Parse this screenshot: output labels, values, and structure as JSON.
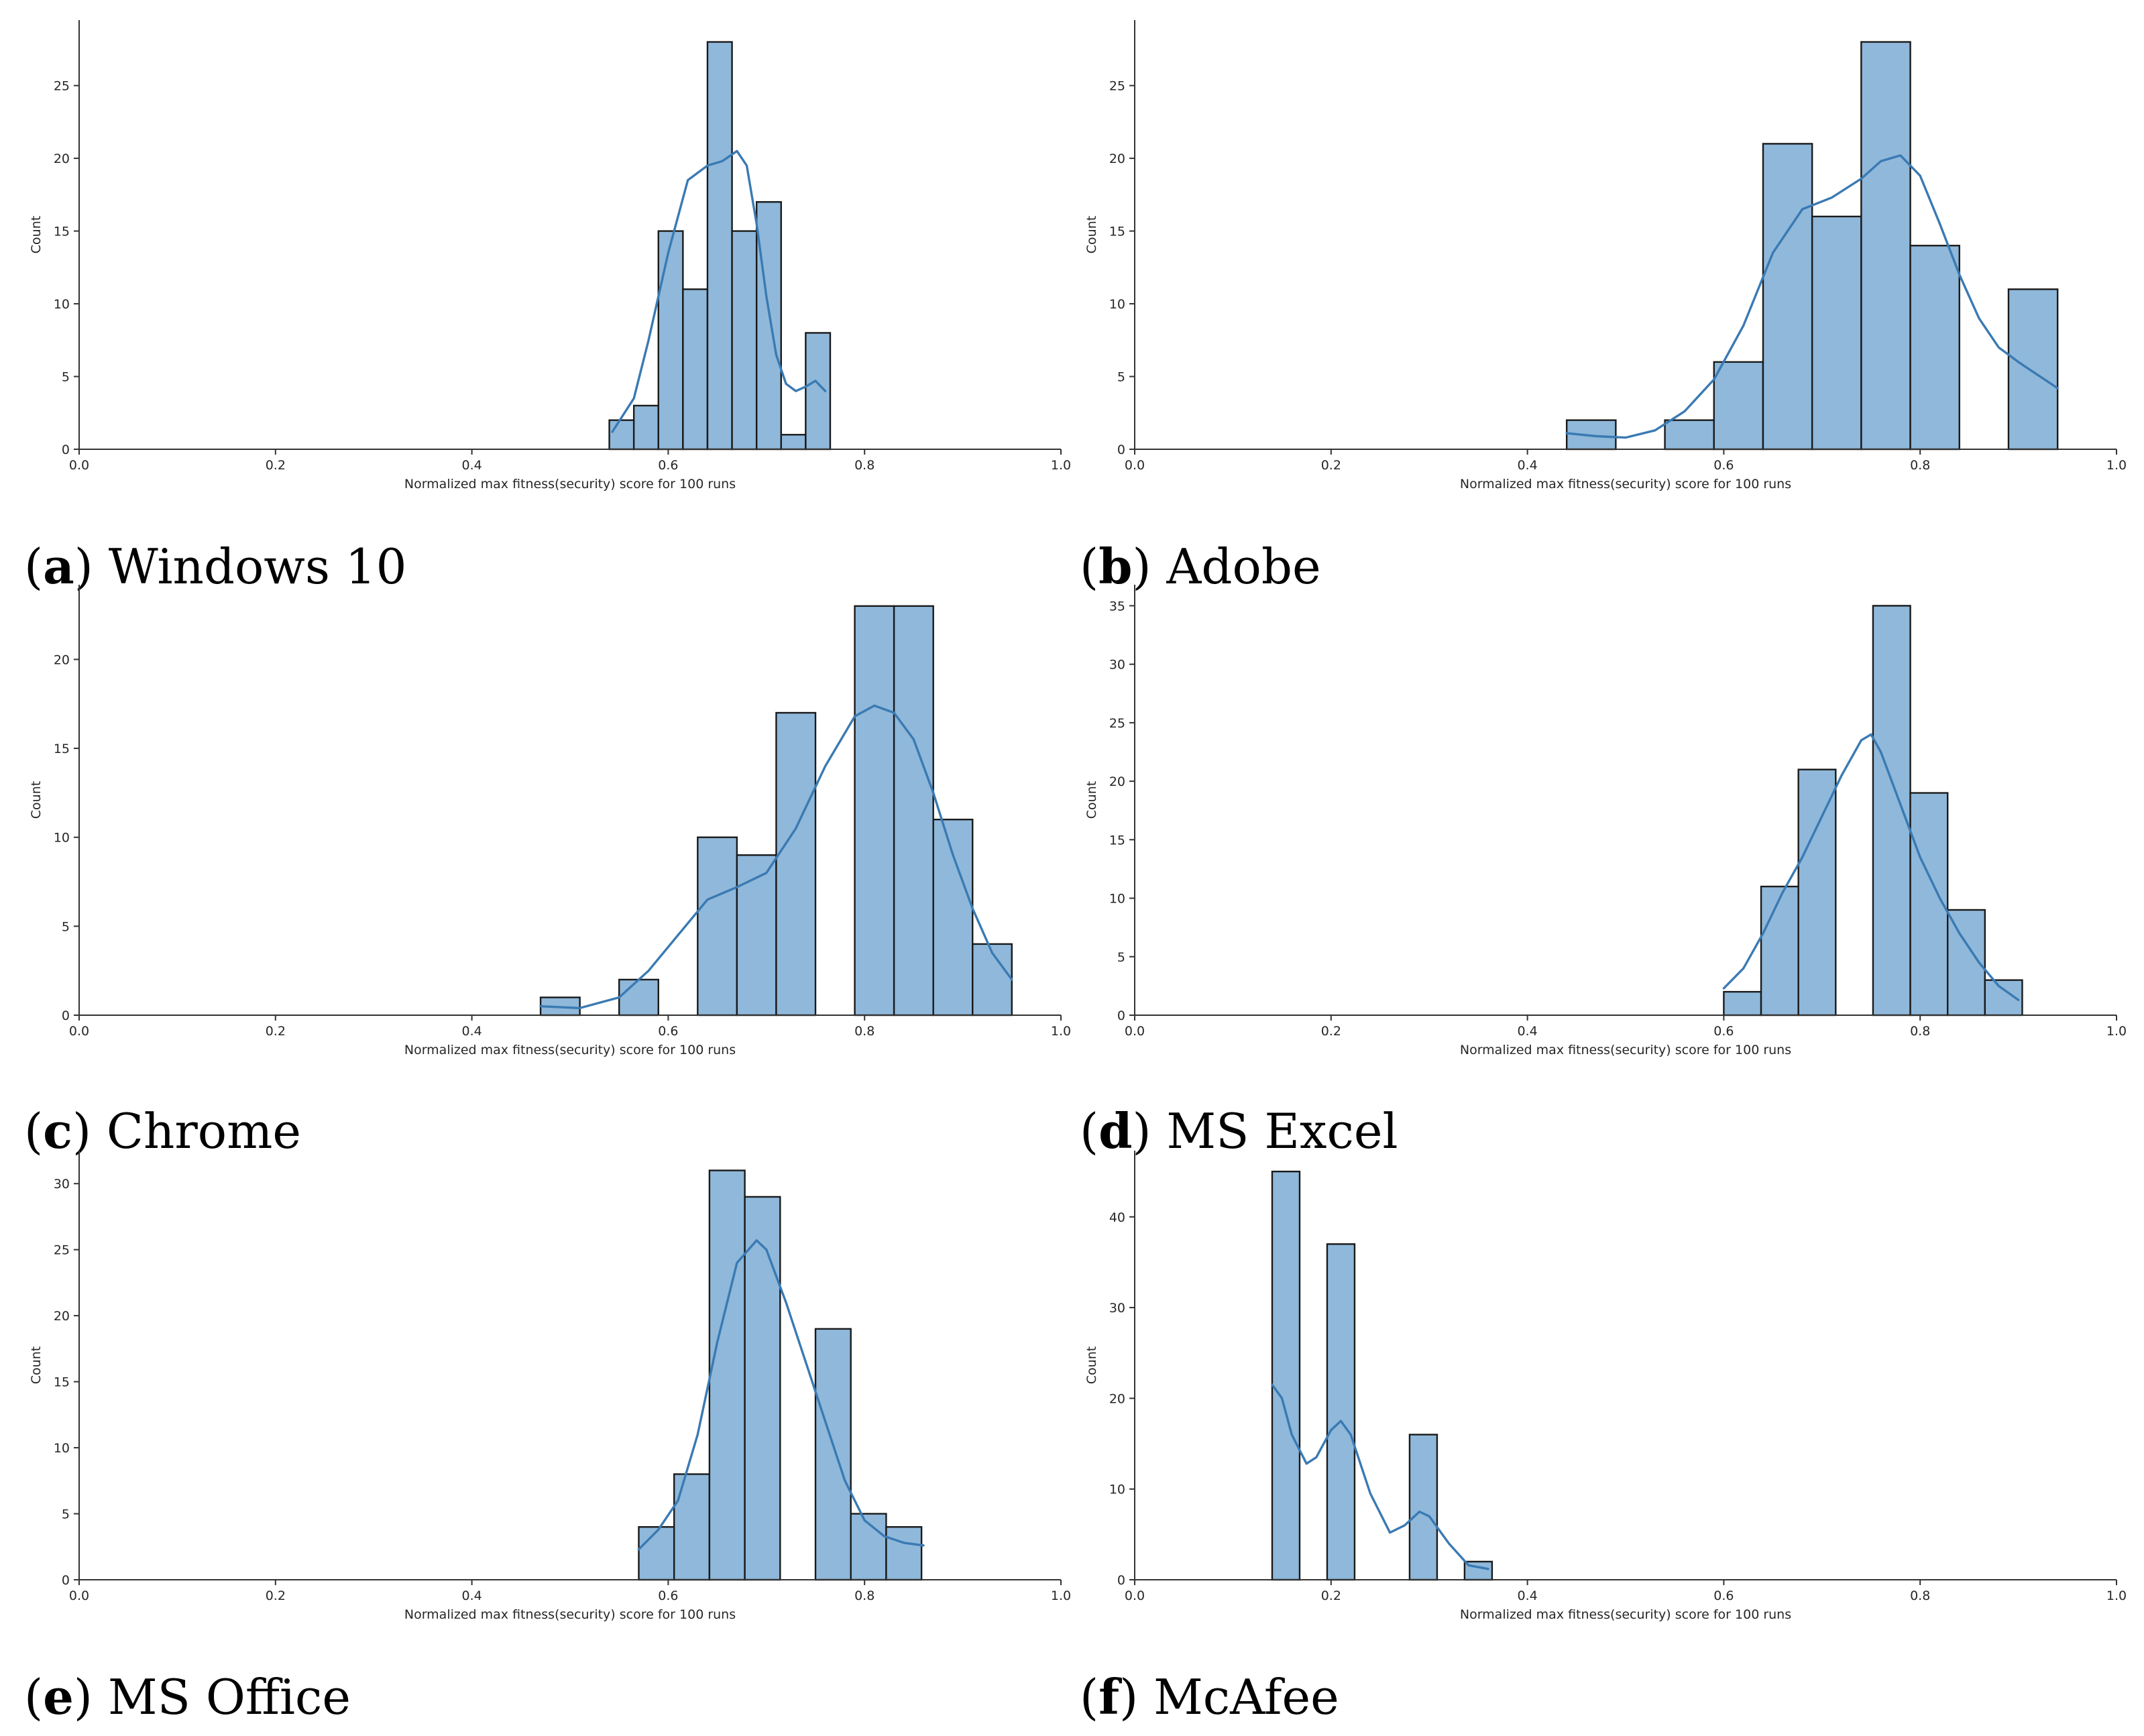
{
  "figure": {
    "style": {
      "bar_color": "#8fb8da",
      "kde_color": "#3a7ab3"
    }
  },
  "chart_data": [
    {
      "panel": "a",
      "caption_label": "a",
      "caption_text": "Windows 10",
      "type": "bar",
      "xlabel": "Normalized max fitness(security) score for 100 runs",
      "ylabel": "Count",
      "xlim": [
        0.0,
        1.0
      ],
      "ylim": [
        0,
        29.5
      ],
      "xticks": [
        "0.0",
        "0.2",
        "0.4",
        "0.6",
        "0.8",
        "1.0"
      ],
      "yticks": [
        "0",
        "5",
        "10",
        "15",
        "20",
        "25"
      ],
      "bins": [
        {
          "x0": 0.54,
          "x1": 0.565,
          "count": 2
        },
        {
          "x0": 0.565,
          "x1": 0.59,
          "count": 3
        },
        {
          "x0": 0.59,
          "x1": 0.615,
          "count": 15
        },
        {
          "x0": 0.615,
          "x1": 0.64,
          "count": 11
        },
        {
          "x0": 0.64,
          "x1": 0.665,
          "count": 28
        },
        {
          "x0": 0.665,
          "x1": 0.69,
          "count": 15
        },
        {
          "x0": 0.69,
          "x1": 0.715,
          "count": 17
        },
        {
          "x0": 0.715,
          "x1": 0.74,
          "count": 1
        },
        {
          "x0": 0.74,
          "x1": 0.765,
          "count": 8
        }
      ],
      "kde": [
        [
          0.543,
          1.2
        ],
        [
          0.565,
          3.5
        ],
        [
          0.58,
          7.5
        ],
        [
          0.6,
          13.5
        ],
        [
          0.62,
          18.5
        ],
        [
          0.64,
          19.5
        ],
        [
          0.655,
          19.8
        ],
        [
          0.67,
          20.5
        ],
        [
          0.68,
          19.5
        ],
        [
          0.69,
          15.5
        ],
        [
          0.7,
          10.5
        ],
        [
          0.71,
          6.5
        ],
        [
          0.72,
          4.5
        ],
        [
          0.73,
          4.0
        ],
        [
          0.74,
          4.3
        ],
        [
          0.75,
          4.7
        ],
        [
          0.76,
          4.0
        ]
      ]
    },
    {
      "panel": "b",
      "caption_label": "b",
      "caption_text": "Adobe",
      "type": "bar",
      "xlabel": "Normalized max fitness(security) score for 100 runs",
      "ylabel": "Count",
      "xlim": [
        0.0,
        1.0
      ],
      "ylim": [
        0,
        29.5
      ],
      "xticks": [
        "0.0",
        "0.2",
        "0.4",
        "0.6",
        "0.8",
        "1.0"
      ],
      "yticks": [
        "0",
        "5",
        "10",
        "15",
        "20",
        "25"
      ],
      "bins": [
        {
          "x0": 0.44,
          "x1": 0.49,
          "count": 2
        },
        {
          "x0": 0.49,
          "x1": 0.54,
          "count": 0
        },
        {
          "x0": 0.54,
          "x1": 0.59,
          "count": 2
        },
        {
          "x0": 0.59,
          "x1": 0.64,
          "count": 6
        },
        {
          "x0": 0.64,
          "x1": 0.69,
          "count": 21
        },
        {
          "x0": 0.69,
          "x1": 0.74,
          "count": 16
        },
        {
          "x0": 0.74,
          "x1": 0.79,
          "count": 28
        },
        {
          "x0": 0.79,
          "x1": 0.84,
          "count": 14
        },
        {
          "x0": 0.84,
          "x1": 0.89,
          "count": 0
        },
        {
          "x0": 0.89,
          "x1": 0.94,
          "count": 11
        }
      ],
      "kde": [
        [
          0.44,
          1.1
        ],
        [
          0.47,
          0.9
        ],
        [
          0.5,
          0.8
        ],
        [
          0.53,
          1.3
        ],
        [
          0.56,
          2.6
        ],
        [
          0.59,
          4.8
        ],
        [
          0.62,
          8.5
        ],
        [
          0.65,
          13.5
        ],
        [
          0.68,
          16.5
        ],
        [
          0.71,
          17.3
        ],
        [
          0.74,
          18.6
        ],
        [
          0.76,
          19.8
        ],
        [
          0.78,
          20.2
        ],
        [
          0.8,
          18.8
        ],
        [
          0.82,
          15.5
        ],
        [
          0.84,
          12.0
        ],
        [
          0.86,
          9.0
        ],
        [
          0.88,
          7.0
        ],
        [
          0.9,
          6.0
        ],
        [
          0.92,
          5.1
        ],
        [
          0.94,
          4.2
        ]
      ]
    },
    {
      "panel": "c",
      "caption_label": "c",
      "caption_text": "Chrome",
      "type": "bar",
      "xlabel": "Normalized max fitness(security) score for 100 runs",
      "ylabel": "Count",
      "xlim": [
        0.0,
        1.0
      ],
      "ylim": [
        0,
        24.2
      ],
      "xticks": [
        "0.0",
        "0.2",
        "0.4",
        "0.6",
        "0.8",
        "1.0"
      ],
      "yticks": [
        "0",
        "5",
        "10",
        "15",
        "20"
      ],
      "bins": [
        {
          "x0": 0.47,
          "x1": 0.51,
          "count": 1
        },
        {
          "x0": 0.51,
          "x1": 0.55,
          "count": 0
        },
        {
          "x0": 0.55,
          "x1": 0.59,
          "count": 2
        },
        {
          "x0": 0.59,
          "x1": 0.63,
          "count": 0
        },
        {
          "x0": 0.63,
          "x1": 0.67,
          "count": 10
        },
        {
          "x0": 0.67,
          "x1": 0.71,
          "count": 9
        },
        {
          "x0": 0.71,
          "x1": 0.75,
          "count": 17
        },
        {
          "x0": 0.75,
          "x1": 0.79,
          "count": 0
        },
        {
          "x0": 0.79,
          "x1": 0.83,
          "count": 23
        },
        {
          "x0": 0.83,
          "x1": 0.87,
          "count": 23
        },
        {
          "x0": 0.87,
          "x1": 0.91,
          "count": 11
        },
        {
          "x0": 0.91,
          "x1": 0.95,
          "count": 4
        }
      ],
      "kde": [
        [
          0.47,
          0.5
        ],
        [
          0.51,
          0.4
        ],
        [
          0.55,
          1.0
        ],
        [
          0.58,
          2.5
        ],
        [
          0.61,
          4.5
        ],
        [
          0.64,
          6.5
        ],
        [
          0.67,
          7.2
        ],
        [
          0.7,
          8.0
        ],
        [
          0.73,
          10.5
        ],
        [
          0.76,
          14.0
        ],
        [
          0.79,
          16.8
        ],
        [
          0.81,
          17.4
        ],
        [
          0.83,
          17.0
        ],
        [
          0.85,
          15.5
        ],
        [
          0.87,
          12.5
        ],
        [
          0.89,
          9.0
        ],
        [
          0.91,
          6.0
        ],
        [
          0.93,
          3.5
        ],
        [
          0.95,
          2.0
        ]
      ]
    },
    {
      "panel": "d",
      "caption_label": "d",
      "caption_text": "MS Excel",
      "type": "bar",
      "xlabel": "Normalized max fitness(security) score for 100 runs",
      "ylabel": "Count",
      "xlim": [
        0.0,
        1.0
      ],
      "ylim": [
        0,
        36.8
      ],
      "xticks": [
        "0.0",
        "0.2",
        "0.4",
        "0.6",
        "0.8",
        "1.0"
      ],
      "yticks": [
        "0",
        "5",
        "10",
        "15",
        "20",
        "25",
        "30",
        "35"
      ],
      "bins": [
        {
          "x0": 0.6,
          "x1": 0.638,
          "count": 2
        },
        {
          "x0": 0.638,
          "x1": 0.676,
          "count": 11
        },
        {
          "x0": 0.676,
          "x1": 0.714,
          "count": 21
        },
        {
          "x0": 0.714,
          "x1": 0.752,
          "count": 0
        },
        {
          "x0": 0.752,
          "x1": 0.79,
          "count": 35
        },
        {
          "x0": 0.79,
          "x1": 0.828,
          "count": 19
        },
        {
          "x0": 0.828,
          "x1": 0.866,
          "count": 9
        },
        {
          "x0": 0.866,
          "x1": 0.904,
          "count": 3
        }
      ],
      "kde": [
        [
          0.6,
          2.3
        ],
        [
          0.62,
          4.0
        ],
        [
          0.64,
          7.0
        ],
        [
          0.66,
          10.5
        ],
        [
          0.68,
          13.5
        ],
        [
          0.7,
          17.0
        ],
        [
          0.72,
          20.5
        ],
        [
          0.74,
          23.5
        ],
        [
          0.75,
          24.0
        ],
        [
          0.76,
          22.5
        ],
        [
          0.78,
          18.0
        ],
        [
          0.8,
          13.5
        ],
        [
          0.82,
          10.0
        ],
        [
          0.84,
          7.0
        ],
        [
          0.86,
          4.5
        ],
        [
          0.88,
          2.5
        ],
        [
          0.9,
          1.3
        ]
      ]
    },
    {
      "panel": "e",
      "caption_label": "e",
      "caption_text": "MS Office",
      "type": "bar",
      "xlabel": "Normalized max fitness(security) score for 100 runs",
      "ylabel": "Count",
      "xlim": [
        0.0,
        1.0
      ],
      "ylim": [
        0,
        32.5
      ],
      "xticks": [
        "0.0",
        "0.2",
        "0.4",
        "0.6",
        "0.8",
        "1.0"
      ],
      "yticks": [
        "0",
        "5",
        "10",
        "15",
        "20",
        "25",
        "30"
      ],
      "bins": [
        {
          "x0": 0.57,
          "x1": 0.606,
          "count": 4
        },
        {
          "x0": 0.606,
          "x1": 0.642,
          "count": 8
        },
        {
          "x0": 0.642,
          "x1": 0.678,
          "count": 31
        },
        {
          "x0": 0.678,
          "x1": 0.714,
          "count": 29
        },
        {
          "x0": 0.714,
          "x1": 0.75,
          "count": 0
        },
        {
          "x0": 0.75,
          "x1": 0.786,
          "count": 19
        },
        {
          "x0": 0.786,
          "x1": 0.822,
          "count": 5
        },
        {
          "x0": 0.822,
          "x1": 0.858,
          "count": 4
        }
      ],
      "kde": [
        [
          0.57,
          2.3
        ],
        [
          0.59,
          3.8
        ],
        [
          0.61,
          6.0
        ],
        [
          0.63,
          11.0
        ],
        [
          0.65,
          18.0
        ],
        [
          0.67,
          24.0
        ],
        [
          0.69,
          25.7
        ],
        [
          0.7,
          25.0
        ],
        [
          0.72,
          21.0
        ],
        [
          0.74,
          16.5
        ],
        [
          0.76,
          12.0
        ],
        [
          0.78,
          7.5
        ],
        [
          0.8,
          4.5
        ],
        [
          0.82,
          3.3
        ],
        [
          0.84,
          2.8
        ],
        [
          0.86,
          2.6
        ]
      ]
    },
    {
      "panel": "f",
      "caption_label": "f",
      "caption_text": "McAfee",
      "type": "bar",
      "xlabel": "Normalized max fitness(security) score for 100 runs",
      "ylabel": "Count",
      "xlim": [
        0.0,
        1.0
      ],
      "ylim": [
        0,
        47.3
      ],
      "xticks": [
        "0.0",
        "0.2",
        "0.4",
        "0.6",
        "0.8",
        "1.0"
      ],
      "yticks": [
        "0",
        "10",
        "20",
        "30",
        "40"
      ],
      "bins": [
        {
          "x0": 0.14,
          "x1": 0.168,
          "count": 45
        },
        {
          "x0": 0.168,
          "x1": 0.196,
          "count": 0
        },
        {
          "x0": 0.196,
          "x1": 0.224,
          "count": 37
        },
        {
          "x0": 0.224,
          "x1": 0.252,
          "count": 0
        },
        {
          "x0": 0.252,
          "x1": 0.28,
          "count": 0
        },
        {
          "x0": 0.28,
          "x1": 0.308,
          "count": 16
        },
        {
          "x0": 0.308,
          "x1": 0.336,
          "count": 0
        },
        {
          "x0": 0.336,
          "x1": 0.364,
          "count": 2
        }
      ],
      "kde": [
        [
          0.14,
          21.5
        ],
        [
          0.15,
          20.0
        ],
        [
          0.16,
          16.0
        ],
        [
          0.175,
          12.8
        ],
        [
          0.185,
          13.5
        ],
        [
          0.2,
          16.5
        ],
        [
          0.21,
          17.5
        ],
        [
          0.22,
          16.0
        ],
        [
          0.24,
          9.5
        ],
        [
          0.26,
          5.2
        ],
        [
          0.275,
          6.0
        ],
        [
          0.29,
          7.5
        ],
        [
          0.3,
          7.0
        ],
        [
          0.32,
          4.0
        ],
        [
          0.34,
          1.6
        ],
        [
          0.36,
          1.2
        ]
      ]
    }
  ]
}
